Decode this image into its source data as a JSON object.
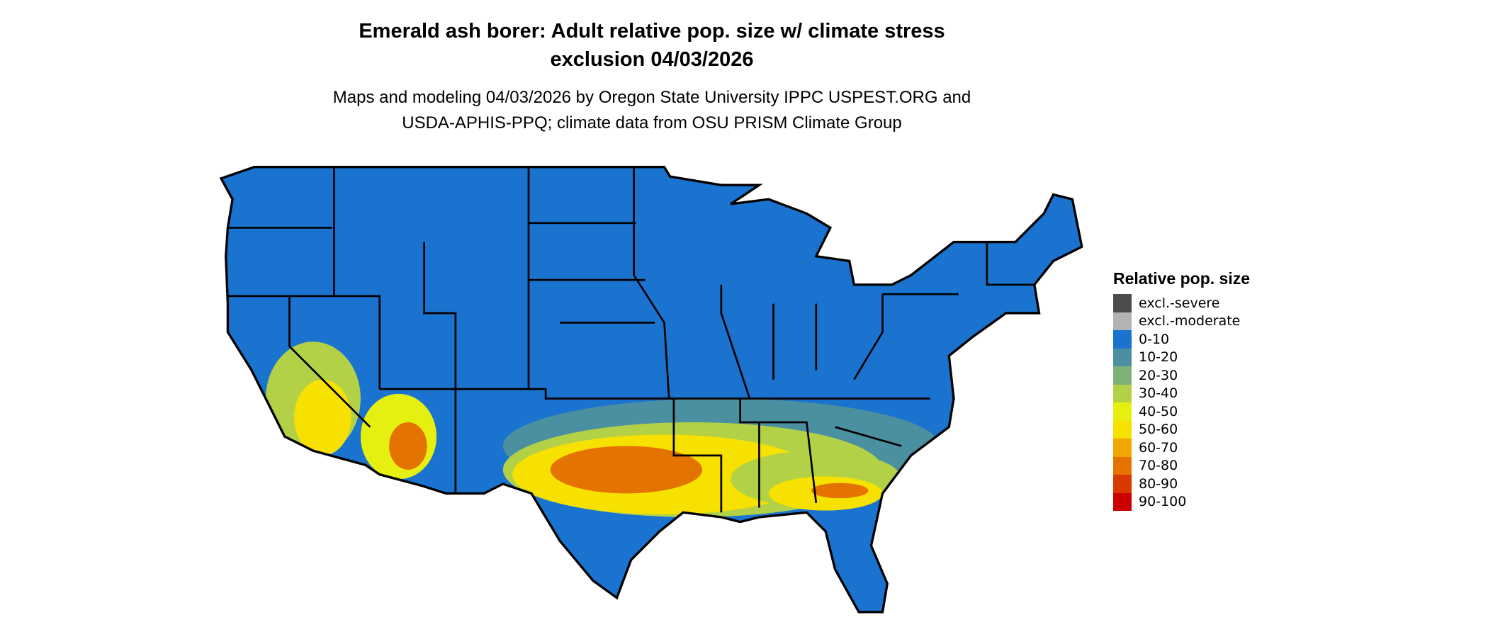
{
  "title_line1": "Emerald ash borer: Adult relative pop. size w/ climate stress",
  "title_line2": "exclusion 04/03/2026",
  "subtitle_line1": "Maps and modeling 04/03/2026 by Oregon State University IPPC USPEST.ORG and",
  "subtitle_line2": "USDA-APHIS-PPQ; climate data from OSU PRISM Climate Group",
  "legend": {
    "title": "Relative pop. size",
    "items": [
      {
        "label": "excl.-severe",
        "color": "#4d4d4d"
      },
      {
        "label": "excl.-moderate",
        "color": "#b3b3b3"
      },
      {
        "label": "0-10",
        "color": "#1a73cf"
      },
      {
        "label": "10-20",
        "color": "#4a90a0"
      },
      {
        "label": "20-30",
        "color": "#7fb077"
      },
      {
        "label": "30-40",
        "color": "#b3d147"
      },
      {
        "label": "40-50",
        "color": "#e5f011"
      },
      {
        "label": "50-60",
        "color": "#f7e100"
      },
      {
        "label": "60-70",
        "color": "#f0a800"
      },
      {
        "label": "70-80",
        "color": "#e57300"
      },
      {
        "label": "80-90",
        "color": "#d93800"
      },
      {
        "label": "90-100",
        "color": "#cc0000"
      }
    ]
  },
  "map": {
    "region": "Contiguous United States",
    "base_color": "#1a73cf",
    "border_color": "#000000"
  }
}
